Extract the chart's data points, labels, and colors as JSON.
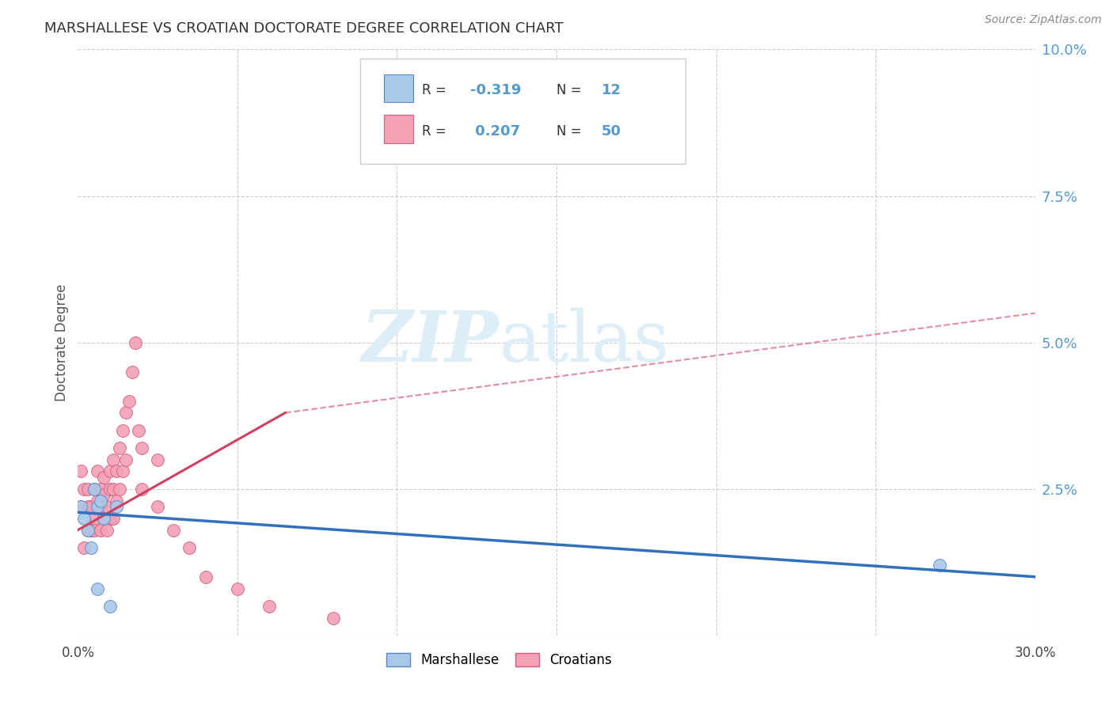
{
  "title": "MARSHALLESE VS CROATIAN DOCTORATE DEGREE CORRELATION CHART",
  "source": "Source: ZipAtlas.com",
  "ylabel": "Doctorate Degree",
  "xlim": [
    0.0,
    0.3
  ],
  "ylim": [
    0.0,
    0.1
  ],
  "marshallese_color": "#aac8e8",
  "marshallese_edge": "#5588cc",
  "croatian_color": "#f4a0b5",
  "croatian_edge": "#d06080",
  "trend_marshallese_color": "#3370bb",
  "trend_croatian_color": "#d04060",
  "watermark_color": "#ddeef8",
  "grid_color": "#cccccc",
  "bg_color": "#ffffff",
  "right_tick_color": "#5599cc",
  "marshallese_x": [
    0.001,
    0.002,
    0.003,
    0.004,
    0.005,
    0.006,
    0.006,
    0.007,
    0.008,
    0.01,
    0.012,
    0.27
  ],
  "marshallese_y": [
    0.022,
    0.02,
    0.018,
    0.015,
    0.025,
    0.022,
    0.008,
    0.023,
    0.02,
    0.005,
    0.022,
    0.012
  ],
  "croatian_x": [
    0.001,
    0.001,
    0.002,
    0.002,
    0.003,
    0.003,
    0.003,
    0.004,
    0.004,
    0.005,
    0.005,
    0.005,
    0.006,
    0.006,
    0.007,
    0.007,
    0.007,
    0.008,
    0.008,
    0.008,
    0.009,
    0.009,
    0.01,
    0.01,
    0.01,
    0.011,
    0.011,
    0.011,
    0.012,
    0.012,
    0.013,
    0.013,
    0.014,
    0.014,
    0.015,
    0.015,
    0.016,
    0.017,
    0.018,
    0.019,
    0.02,
    0.02,
    0.025,
    0.025,
    0.03,
    0.035,
    0.04,
    0.05,
    0.06,
    0.08
  ],
  "croatian_y": [
    0.028,
    0.022,
    0.025,
    0.015,
    0.022,
    0.018,
    0.025,
    0.018,
    0.022,
    0.02,
    0.025,
    0.018,
    0.023,
    0.028,
    0.022,
    0.025,
    0.018,
    0.024,
    0.02,
    0.027,
    0.022,
    0.018,
    0.025,
    0.02,
    0.028,
    0.03,
    0.025,
    0.02,
    0.028,
    0.023,
    0.032,
    0.025,
    0.035,
    0.028,
    0.038,
    0.03,
    0.04,
    0.045,
    0.05,
    0.035,
    0.032,
    0.025,
    0.03,
    0.022,
    0.018,
    0.015,
    0.01,
    0.008,
    0.005,
    0.003
  ],
  "trend_marsh_x0": 0.0,
  "trend_marsh_x1": 0.3,
  "trend_marsh_y0": 0.021,
  "trend_marsh_y1": 0.01,
  "trend_cr_solid_x0": 0.0,
  "trend_cr_solid_x1": 0.065,
  "trend_cr_y0": 0.018,
  "trend_cr_y1": 0.038,
  "trend_cr_dash_x0": 0.065,
  "trend_cr_dash_x1": 0.3,
  "trend_cr_dash_y0": 0.038,
  "trend_cr_dash_y1": 0.055
}
